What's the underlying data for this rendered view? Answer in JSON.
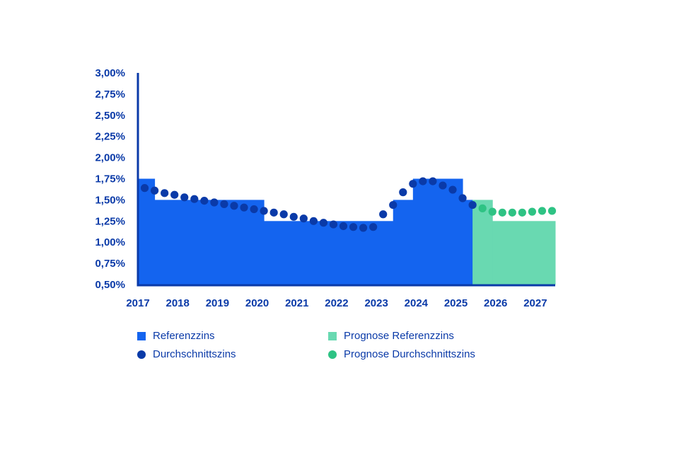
{
  "colors": {
    "referenzzins": "#1464ef",
    "durchschnittszins": "#0a3aa8",
    "prognose_referenzzins": "#69d9b1",
    "prognose_durchschnittszins": "#2ec384",
    "axis": "#0a3aa8",
    "text": "#0a3aa8"
  },
  "legend": {
    "referenzzins": "Referenzzins",
    "durchschnittszins": "Durchschnittszins",
    "prognose_referenzzins": "Prognose Referenzzins",
    "prognose_durchschnittszins": "Prognose Durchschnittszins"
  },
  "chart_data": {
    "type": "area",
    "title": "",
    "xlabel": "",
    "ylabel": "",
    "ylim": [
      0.5,
      3.0
    ],
    "xlim": [
      2017.0,
      2027.5
    ],
    "y_ticks": [
      "3,00%",
      "2,75%",
      "2,50%",
      "2,25%",
      "2,00%",
      "1,75%",
      "1,50%",
      "1,25%",
      "1,00%",
      "0,75%",
      "0,50%"
    ],
    "y_tick_values": [
      3.0,
      2.75,
      2.5,
      2.25,
      2.0,
      1.75,
      1.5,
      1.25,
      1.0,
      0.75,
      0.5
    ],
    "x_ticks": [
      "2017",
      "2018",
      "2019",
      "2020",
      "2021",
      "2022",
      "2023",
      "2024",
      "2025",
      "2026",
      "2027"
    ],
    "x_tick_values": [
      2017,
      2018,
      2019,
      2020,
      2021,
      2022,
      2023,
      2024,
      2025,
      2026,
      2027
    ],
    "grid": false,
    "legend_position": "bottom",
    "series": [
      {
        "name": "Referenzzins",
        "kind": "step-area",
        "segments": [
          {
            "x0": 2017.0,
            "x1": 2017.42,
            "y": 1.75
          },
          {
            "x0": 2017.42,
            "x1": 2020.17,
            "y": 1.5
          },
          {
            "x0": 2020.17,
            "x1": 2023.42,
            "y": 1.25
          },
          {
            "x0": 2023.42,
            "x1": 2023.92,
            "y": 1.5
          },
          {
            "x0": 2023.92,
            "x1": 2025.17,
            "y": 1.75
          },
          {
            "x0": 2025.17,
            "x1": 2025.42,
            "y": 1.5
          }
        ]
      },
      {
        "name": "Prognose Referenzzins",
        "kind": "step-area",
        "segments": [
          {
            "x0": 2025.42,
            "x1": 2025.92,
            "y": 1.5
          },
          {
            "x0": 2025.92,
            "x1": 2027.5,
            "y": 1.25
          }
        ]
      },
      {
        "name": "Durchschnittszins",
        "kind": "dots",
        "points": [
          {
            "x": 2017.17,
            "y": 1.64
          },
          {
            "x": 2017.42,
            "y": 1.61
          },
          {
            "x": 2017.67,
            "y": 1.58
          },
          {
            "x": 2017.92,
            "y": 1.56
          },
          {
            "x": 2018.17,
            "y": 1.53
          },
          {
            "x": 2018.42,
            "y": 1.51
          },
          {
            "x": 2018.67,
            "y": 1.49
          },
          {
            "x": 2018.92,
            "y": 1.47
          },
          {
            "x": 2019.17,
            "y": 1.45
          },
          {
            "x": 2019.42,
            "y": 1.43
          },
          {
            "x": 2019.67,
            "y": 1.41
          },
          {
            "x": 2019.92,
            "y": 1.39
          },
          {
            "x": 2020.17,
            "y": 1.37
          },
          {
            "x": 2020.42,
            "y": 1.35
          },
          {
            "x": 2020.67,
            "y": 1.33
          },
          {
            "x": 2020.92,
            "y": 1.3
          },
          {
            "x": 2021.17,
            "y": 1.28
          },
          {
            "x": 2021.42,
            "y": 1.25
          },
          {
            "x": 2021.67,
            "y": 1.23
          },
          {
            "x": 2021.92,
            "y": 1.21
          },
          {
            "x": 2022.17,
            "y": 1.19
          },
          {
            "x": 2022.42,
            "y": 1.18
          },
          {
            "x": 2022.67,
            "y": 1.17
          },
          {
            "x": 2022.92,
            "y": 1.18
          },
          {
            "x": 2023.17,
            "y": 1.33
          },
          {
            "x": 2023.42,
            "y": 1.44
          },
          {
            "x": 2023.67,
            "y": 1.59
          },
          {
            "x": 2023.92,
            "y": 1.69
          },
          {
            "x": 2024.17,
            "y": 1.72
          },
          {
            "x": 2024.42,
            "y": 1.72
          },
          {
            "x": 2024.67,
            "y": 1.67
          },
          {
            "x": 2024.92,
            "y": 1.62
          },
          {
            "x": 2025.17,
            "y": 1.52
          },
          {
            "x": 2025.42,
            "y": 1.44
          }
        ]
      },
      {
        "name": "Prognose Durchschnittszins",
        "kind": "dots",
        "points": [
          {
            "x": 2025.67,
            "y": 1.4
          },
          {
            "x": 2025.92,
            "y": 1.36
          },
          {
            "x": 2026.17,
            "y": 1.35
          },
          {
            "x": 2026.42,
            "y": 1.35
          },
          {
            "x": 2026.67,
            "y": 1.35
          },
          {
            "x": 2026.92,
            "y": 1.36
          },
          {
            "x": 2027.17,
            "y": 1.37
          },
          {
            "x": 2027.42,
            "y": 1.37
          }
        ]
      }
    ]
  }
}
